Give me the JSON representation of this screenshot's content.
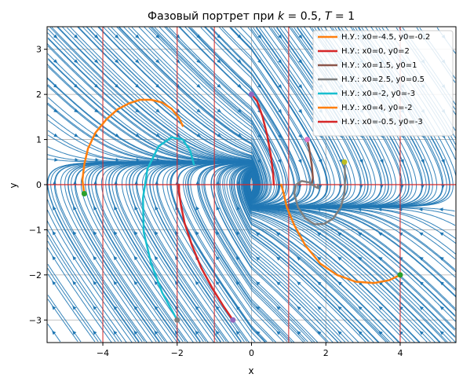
{
  "chart_data": {
    "type": "line",
    "title": "Фазовый портрет при k = 0.5, T = 1",
    "title_parts": {
      "prefix": "Фазовый портрет при ",
      "k_symbol": "k",
      "k_value": " = 0.5, ",
      "t_symbol": "T",
      "t_value": " = 1"
    },
    "xlabel": "x",
    "ylabel": "y",
    "xlim": [
      -5.5,
      5.5
    ],
    "ylim": [
      -3.5,
      3.5
    ],
    "xticks": [
      -4,
      -2,
      0,
      2,
      4
    ],
    "yticks": [
      -3,
      -2,
      -1,
      0,
      1,
      2,
      3
    ],
    "xtick_labels": [
      "−4",
      "−2",
      "0",
      "2",
      "4"
    ],
    "ytick_labels": [
      "−3",
      "−2",
      "−1",
      "0",
      "1",
      "2",
      "3"
    ],
    "grid": true,
    "legend_position": "top-right",
    "params": {
      "k": 0.5,
      "T": 1
    },
    "switching_lines_x": [
      -4,
      -2,
      -1,
      1,
      4
    ],
    "axis_line_y": 0,
    "stream_color": "#1f77b4",
    "switch_line_color": "#d62728",
    "series": [
      {
        "name": "Н.У.: x0=-4.5, y0=-0.2",
        "color": "#ff7f0e",
        "x": [
          -4.5,
          -4.55,
          -4.5,
          -4.4,
          -4.2,
          -3.9,
          -3.6,
          -3.3,
          -3.0,
          -2.7,
          -2.4,
          -2.15,
          -1.95,
          -1.85
        ],
        "y": [
          -0.2,
          0.1,
          0.45,
          0.8,
          1.15,
          1.45,
          1.67,
          1.8,
          1.88,
          1.88,
          1.82,
          1.68,
          1.48,
          1.3
        ]
      },
      {
        "name": "Н.У.: x0=0, y0=2",
        "color": "#d62728",
        "x": [
          0.0,
          0.15,
          0.3,
          0.42,
          0.52,
          0.58,
          0.6
        ],
        "y": [
          2.0,
          1.85,
          1.5,
          1.1,
          0.65,
          0.25,
          0.0
        ]
      },
      {
        "name": "Н.У.: x0=1.5, y0=1",
        "color": "#8c564b",
        "x": [
          1.5,
          1.55,
          1.62,
          1.65,
          1.62
        ],
        "y": [
          1.0,
          0.8,
          0.45,
          0.15,
          0.0
        ]
      },
      {
        "name": "Н.У.: x0=2.5, y0=0.5",
        "color": "#7f7f7f",
        "x": [
          2.5,
          2.52,
          2.5,
          2.4,
          2.2,
          1.95,
          1.7,
          1.45,
          1.25,
          1.15,
          1.2,
          1.35,
          1.55,
          1.72,
          1.8,
          1.78
        ],
        "y": [
          0.5,
          0.15,
          -0.2,
          -0.5,
          -0.75,
          -0.87,
          -0.88,
          -0.75,
          -0.5,
          -0.2,
          0.0,
          0.08,
          0.05,
          -0.05,
          -0.08,
          0.0
        ]
      },
      {
        "name": "Н.У.: x0=-2, y0=-3",
        "color": "#17becf",
        "x": [
          -2.0,
          -2.4,
          -2.7,
          -2.9,
          -2.92,
          -2.8,
          -2.5,
          -2.15,
          -1.85,
          -1.65,
          -1.55
        ],
        "y": [
          -3.0,
          -2.4,
          -1.75,
          -1.05,
          -0.3,
          0.35,
          0.85,
          1.05,
          1.0,
          0.75,
          0.45
        ]
      },
      {
        "name": "Н.У.: x0=4, y0=-2",
        "color": "#ff7f0e",
        "x": [
          4.0,
          3.7,
          3.3,
          2.8,
          2.3,
          1.85,
          1.45,
          1.15,
          0.95,
          0.85,
          0.8
        ],
        "y": [
          -2.0,
          -2.12,
          -2.18,
          -2.15,
          -2.0,
          -1.75,
          -1.35,
          -0.9,
          -0.5,
          -0.15,
          0.0
        ]
      },
      {
        "name": "Н.У.: x0=-0.5, y0=-3",
        "color": "#d62728",
        "x": [
          -0.5,
          -0.75,
          -1.05,
          -1.35,
          -1.6,
          -1.8,
          -1.9,
          -1.95,
          -1.95
        ],
        "y": [
          -3.0,
          -2.7,
          -2.3,
          -1.85,
          -1.35,
          -0.85,
          -0.45,
          -0.15,
          0.0
        ]
      }
    ],
    "initial_points": [
      {
        "x": -4.5,
        "y": -0.2,
        "color": "#2ca02c"
      },
      {
        "x": 0.0,
        "y": 2.0,
        "color": "#9467bd"
      },
      {
        "x": 1.5,
        "y": 1.0,
        "color": "#e377c2"
      },
      {
        "x": 2.5,
        "y": 0.5,
        "color": "#bcbd22"
      },
      {
        "x": -2.0,
        "y": -3.0,
        "color": "#7f7f7f"
      },
      {
        "x": 4.0,
        "y": -2.0,
        "color": "#2ca02c"
      },
      {
        "x": -0.5,
        "y": -3.0,
        "color": "#9467bd"
      }
    ]
  }
}
